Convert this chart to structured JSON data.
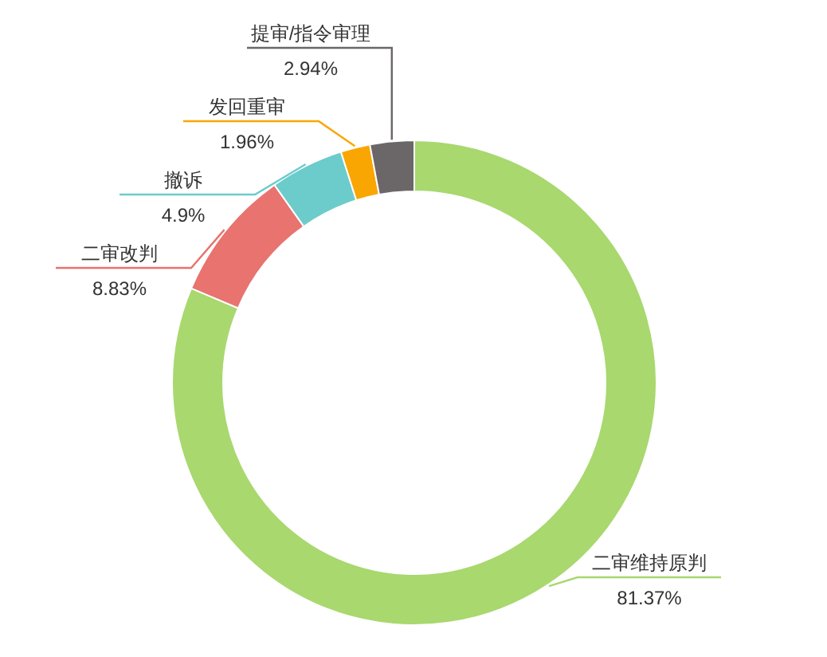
{
  "chart_data": {
    "type": "donut",
    "categories": [
      "二审维持原判",
      "二审改判",
      "撤诉",
      "发回重审",
      "提审/指令审理"
    ],
    "values": [
      81.37,
      8.83,
      4.9,
      1.96,
      2.94
    ],
    "colors": [
      "#a8d86e",
      "#e8736f",
      "#6ccbcb",
      "#f9a602",
      "#6b6667"
    ],
    "value_labels": [
      "81.37%",
      "8.83%",
      "4.9%",
      "1.96%",
      "2.94%"
    ]
  }
}
